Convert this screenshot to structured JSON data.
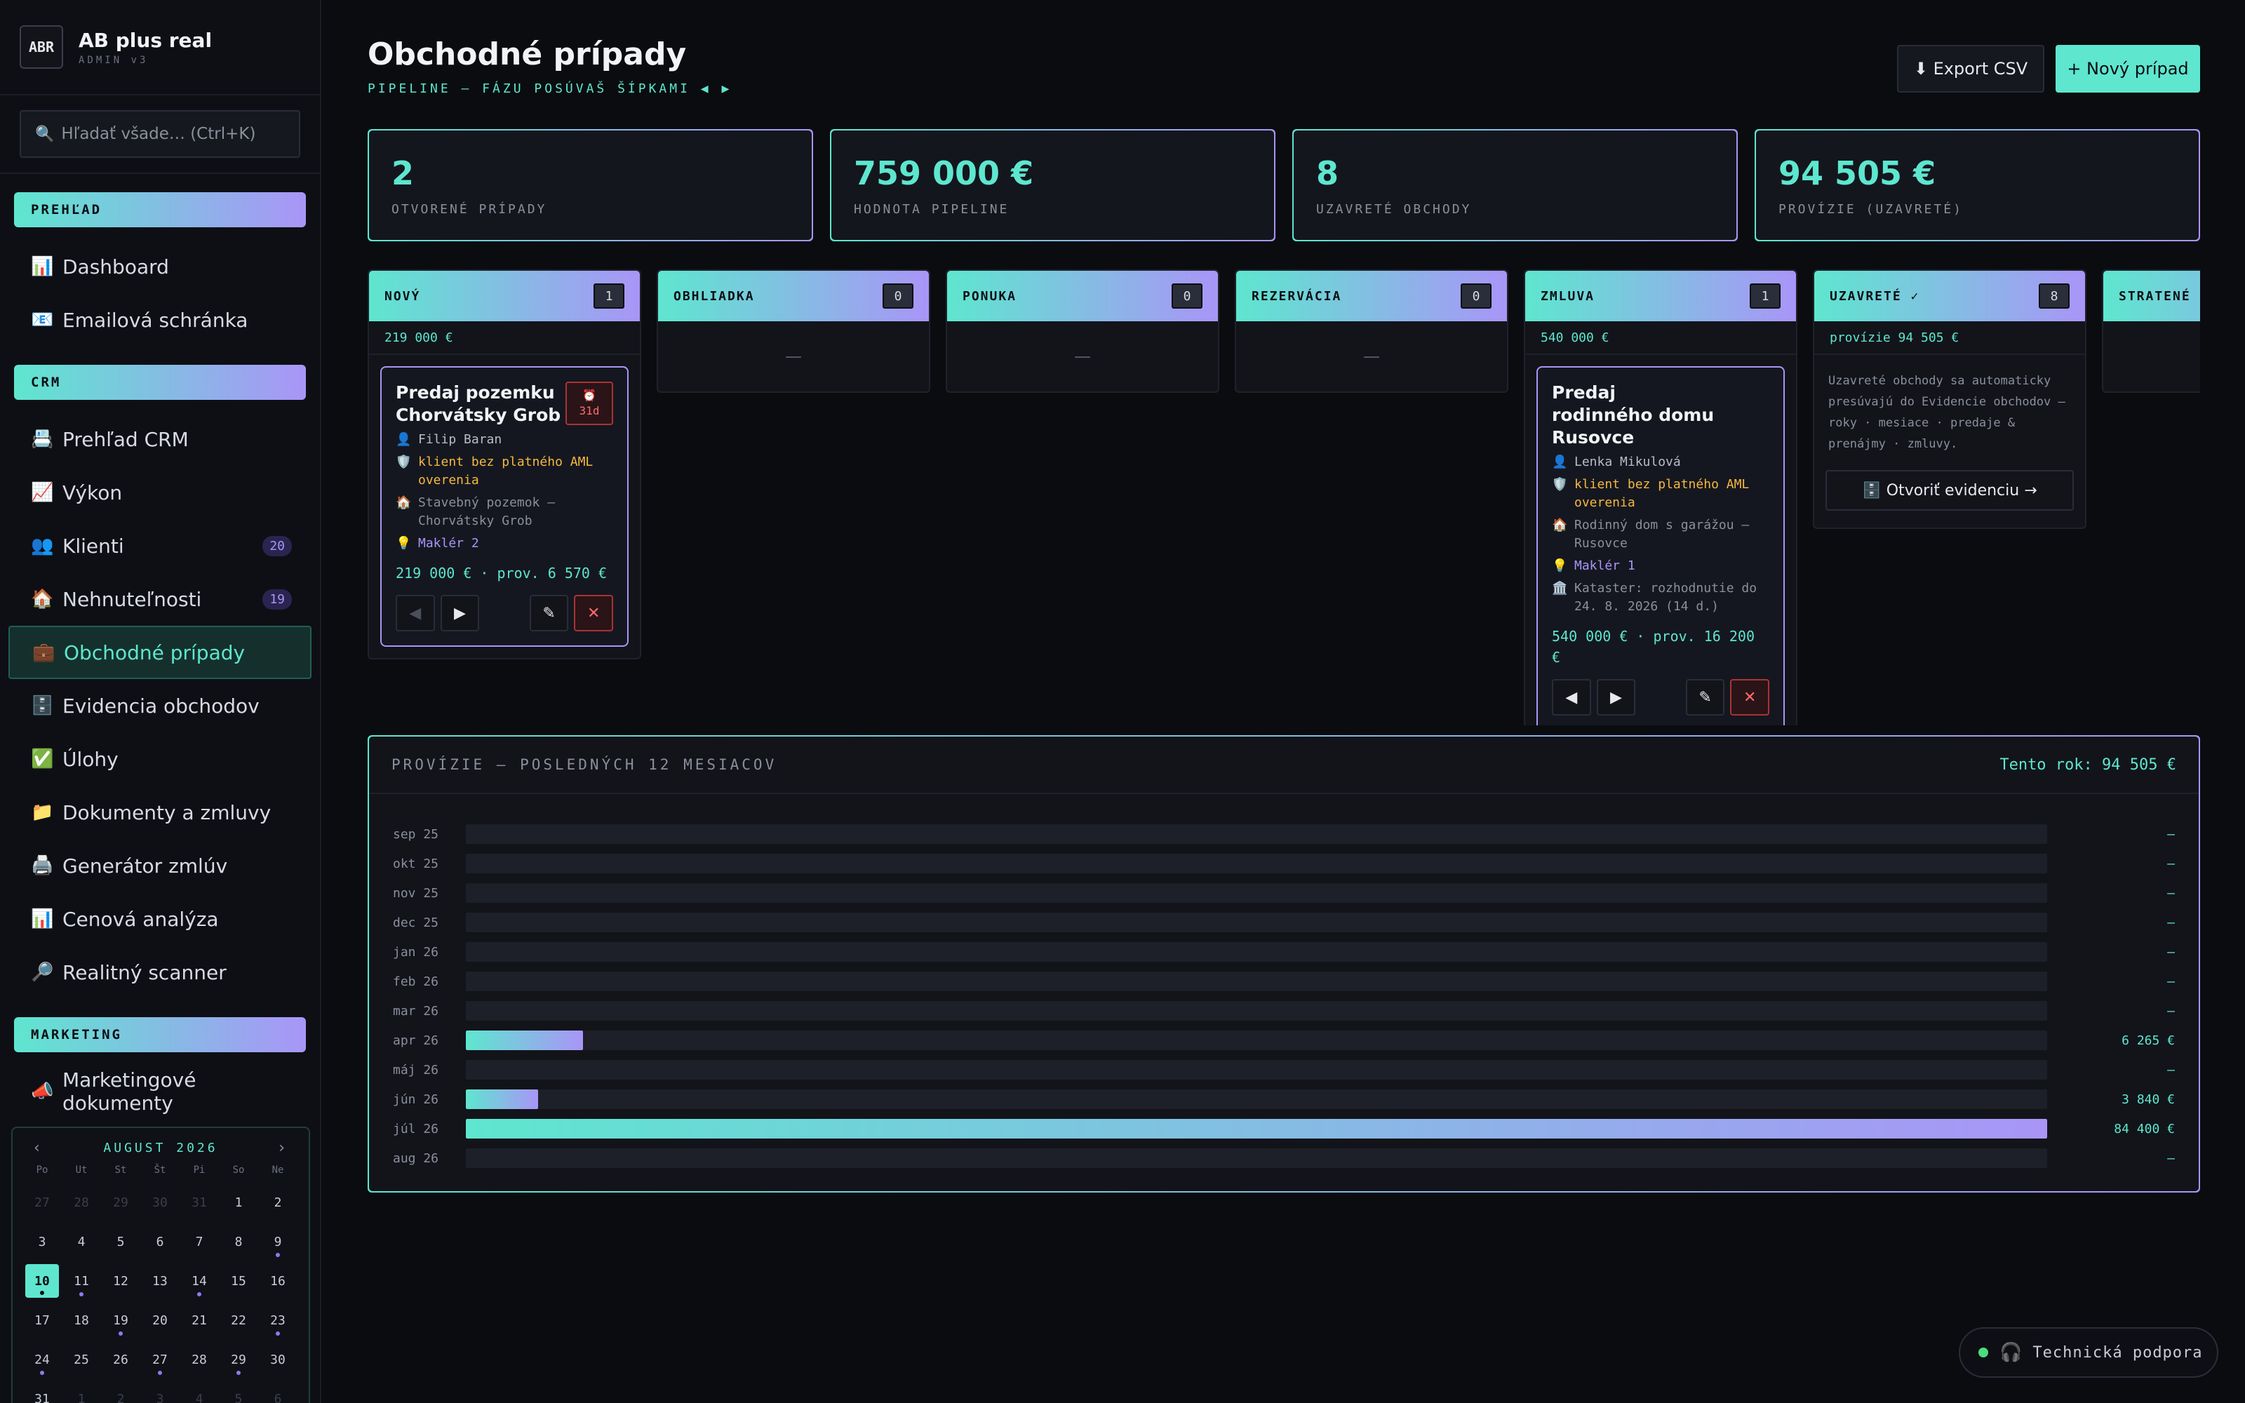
{
  "brand": {
    "logo": "ABR",
    "name": "AB plus real",
    "sub": "ADMIN v3"
  },
  "search": {
    "placeholder": "Hľadať všade… (Ctrl+K)",
    "icon": "search-icon"
  },
  "sidebar": {
    "sections": [
      {
        "title": "PREHĽAD",
        "items": [
          {
            "icon": "📊",
            "label": "Dashboard",
            "badge": null
          },
          {
            "icon": "📧",
            "label": "Emailová schránka",
            "badge": null
          }
        ]
      },
      {
        "title": "CRM",
        "items": [
          {
            "icon": "📇",
            "label": "Prehľad CRM",
            "badge": null
          },
          {
            "icon": "📈",
            "label": "Výkon",
            "badge": null
          },
          {
            "icon": "👥",
            "label": "Klienti",
            "badge": "20"
          },
          {
            "icon": "🏠",
            "label": "Nehnuteľnosti",
            "badge": "19"
          },
          {
            "icon": "💼",
            "label": "Obchodné prípady",
            "badge": null,
            "active": true
          },
          {
            "icon": "🗄️",
            "label": "Evidencia obchodov",
            "badge": null
          },
          {
            "icon": "✅",
            "label": "Úlohy",
            "badge": null
          },
          {
            "icon": "📁",
            "label": "Dokumenty a zmluvy",
            "badge": null
          },
          {
            "icon": "🖨️",
            "label": "Generátor zmlúv",
            "badge": null
          },
          {
            "icon": "📊",
            "label": "Cenová analýza",
            "badge": null
          },
          {
            "icon": "🔎",
            "label": "Realitný scanner",
            "badge": null
          }
        ]
      },
      {
        "title": "MARKETING",
        "items": [
          {
            "icon": "📣",
            "label": "Marketingové dokumenty",
            "badge": null
          }
        ]
      }
    ]
  },
  "calendar": {
    "month": "AUGUST 2026",
    "prev": "‹",
    "next": "›",
    "dow": [
      "Po",
      "Ut",
      "St",
      "Št",
      "Pi",
      "So",
      "Ne"
    ],
    "weeks": [
      [
        {
          "d": "27",
          "dim": true
        },
        {
          "d": "28",
          "dim": true
        },
        {
          "d": "29",
          "dim": true
        },
        {
          "d": "30",
          "dim": true
        },
        {
          "d": "31",
          "dim": true
        },
        {
          "d": "1"
        },
        {
          "d": "2"
        }
      ],
      [
        {
          "d": "3"
        },
        {
          "d": "4"
        },
        {
          "d": "5"
        },
        {
          "d": "6"
        },
        {
          "d": "7"
        },
        {
          "d": "8"
        },
        {
          "d": "9",
          "dot": true
        }
      ],
      [
        {
          "d": "10",
          "today": true,
          "dot": true
        },
        {
          "d": "11",
          "dot": true
        },
        {
          "d": "12"
        },
        {
          "d": "13"
        },
        {
          "d": "14",
          "dot": true
        },
        {
          "d": "15"
        },
        {
          "d": "16"
        }
      ],
      [
        {
          "d": "17"
        },
        {
          "d": "18"
        },
        {
          "d": "19",
          "dot": true
        },
        {
          "d": "20"
        },
        {
          "d": "21"
        },
        {
          "d": "22"
        },
        {
          "d": "23",
          "dot": true
        }
      ],
      [
        {
          "d": "24",
          "dot": true
        },
        {
          "d": "25"
        },
        {
          "d": "26"
        },
        {
          "d": "27",
          "dot": true
        },
        {
          "d": "28"
        },
        {
          "d": "29",
          "dot": true
        },
        {
          "d": "30"
        }
      ],
      [
        {
          "d": "31"
        },
        {
          "d": "1",
          "dim": true
        },
        {
          "d": "2",
          "dim": true
        },
        {
          "d": "3",
          "dim": true
        },
        {
          "d": "4",
          "dim": true
        },
        {
          "d": "5",
          "dim": true
        },
        {
          "d": "6",
          "dim": true
        }
      ]
    ]
  },
  "header": {
    "title": "Obchodné prípady",
    "subtitle": "PIPELINE — FÁZU POSÚVAŠ ŠÍPKAMI ◀ ▶",
    "export_label": "⬇ Export CSV",
    "new_label": "+ Nový prípad"
  },
  "kpis": [
    {
      "value": "2",
      "label": "OTVORENÉ PRÍPADY"
    },
    {
      "value": "759 000 €",
      "label": "HODNOTA PIPELINE"
    },
    {
      "value": "8",
      "label": "UZAVRETÉ OBCHODY"
    },
    {
      "value": "94 505 €",
      "label": "PROVÍZIE (UZAVRETÉ)"
    }
  ],
  "board": {
    "empty_mark": "—",
    "columns": [
      {
        "title": "NOVÝ",
        "count": "1",
        "sum": "219 000 €",
        "cards": [
          {
            "title": "Predaj pozemku Chorvátsky Grob",
            "age_icon": "⏰",
            "age": "31d",
            "client": "Filip Baran",
            "warn": "klient bez platného AML overenia",
            "property": "Stavebný pozemok — Chorvátsky Grob",
            "broker": "Maklér 2",
            "extra": null,
            "price": "219 000 € · prov. 6 570 €",
            "prev_disabled": true
          }
        ]
      },
      {
        "title": "OBHLIADKA",
        "count": "0",
        "sum": null,
        "cards": []
      },
      {
        "title": "PONUKA",
        "count": "0",
        "sum": null,
        "cards": []
      },
      {
        "title": "REZERVÁCIA",
        "count": "0",
        "sum": null,
        "cards": []
      },
      {
        "title": "ZMLUVA",
        "count": "1",
        "sum": "540 000 €",
        "cards": [
          {
            "title": "Predaj rodinného domu Rusovce",
            "age_icon": null,
            "age": null,
            "client": "Lenka Mikulová",
            "warn": "klient bez platného AML overenia",
            "property": "Rodinný dom s garážou — Rusovce",
            "broker": "Maklér 1",
            "extra": "Kataster: rozhodnutie do 24. 8. 2026 (14 d.)",
            "price": "540 000 € · prov. 16 200 €",
            "prev_disabled": false
          }
        ]
      },
      {
        "title": "UZAVRETÉ ✓",
        "count": "8",
        "sum": "provízie 94 505 €",
        "closed": true,
        "text": "Uzavreté obchody sa automaticky presúvajú do Evidencie obchodov — roky · mesiace · predaje & prenájmy · zmluvy.",
        "button": "🗄️ Otvoriť evidenciu →",
        "cards": []
      },
      {
        "title": "STRATENÉ",
        "count": "",
        "sum": null,
        "cards": []
      }
    ]
  },
  "chart_data": {
    "type": "bar",
    "title": "PROVÍZIE — POSLEDNÝCH 12 MESIACOV",
    "summary": "Tento rok: 94 505 €",
    "categories": [
      "sep 25",
      "okt 25",
      "nov 25",
      "dec 25",
      "jan 26",
      "feb 26",
      "mar 26",
      "apr 26",
      "máj 26",
      "jún 26",
      "júl 26",
      "aug 26"
    ],
    "values": [
      0,
      0,
      0,
      0,
      0,
      0,
      0,
      6265,
      0,
      3840,
      84400,
      0
    ],
    "value_labels": [
      "—",
      "—",
      "—",
      "—",
      "—",
      "—",
      "—",
      "6 265 €",
      "—",
      "3 840 €",
      "84 400 €",
      "—"
    ],
    "orientation": "horizontal",
    "xlim": [
      0,
      84400
    ]
  },
  "support": {
    "label": "Technická podpora",
    "icon": "headphones-icon"
  }
}
